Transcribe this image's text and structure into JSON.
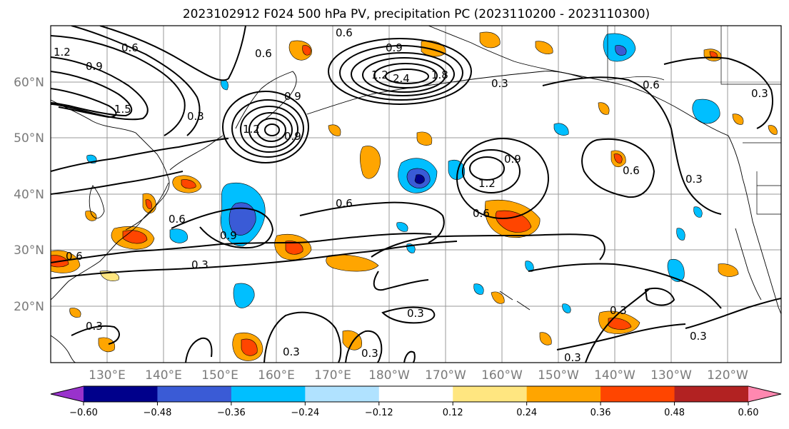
{
  "title": "2023102912 F024 500 hPa PV, precipitation PC (2023110200 - 2023110300)",
  "lat_labels": [
    "60°N",
    "50°N",
    "40°N",
    "30°N",
    "20°N"
  ],
  "lon_labels": [
    "130°E",
    "140°E",
    "150°E",
    "160°E",
    "170°E",
    "180°W",
    "170°W",
    "160°W",
    "150°W",
    "140°W",
    "130°W",
    "120°W"
  ],
  "colorbar": {
    "tick_labels": [
      "−0.60",
      "−0.48",
      "−0.36",
      "−0.24",
      "−0.12",
      "0.12",
      "0.24",
      "0.36",
      "0.48",
      "0.60"
    ],
    "colors": [
      "#9932cc",
      "#00008b",
      "#3a5bd6",
      "#00bfff",
      "#b0e2ff",
      "#ffffff",
      "#ffe680",
      "#ffa500",
      "#ff4500",
      "#b22222",
      "#ff88b0"
    ]
  },
  "contour_labels": [
    "0.6",
    "0.6",
    "0.9",
    "1.2",
    "0.6",
    "0.9",
    "0.9",
    "2.4",
    "1.5",
    "1.8",
    "0.3",
    "0.6",
    "0.9",
    "1.2",
    "0.6",
    "0.3",
    "0.9",
    "1.2",
    "0.6",
    "0.3",
    "0.3",
    "0.6",
    "0.9",
    "0.3",
    "0.6",
    "0.3",
    "0.6",
    "0.3",
    "0.3",
    "0.3",
    "0.3",
    "0.3",
    "0.3",
    "1.2"
  ]
}
